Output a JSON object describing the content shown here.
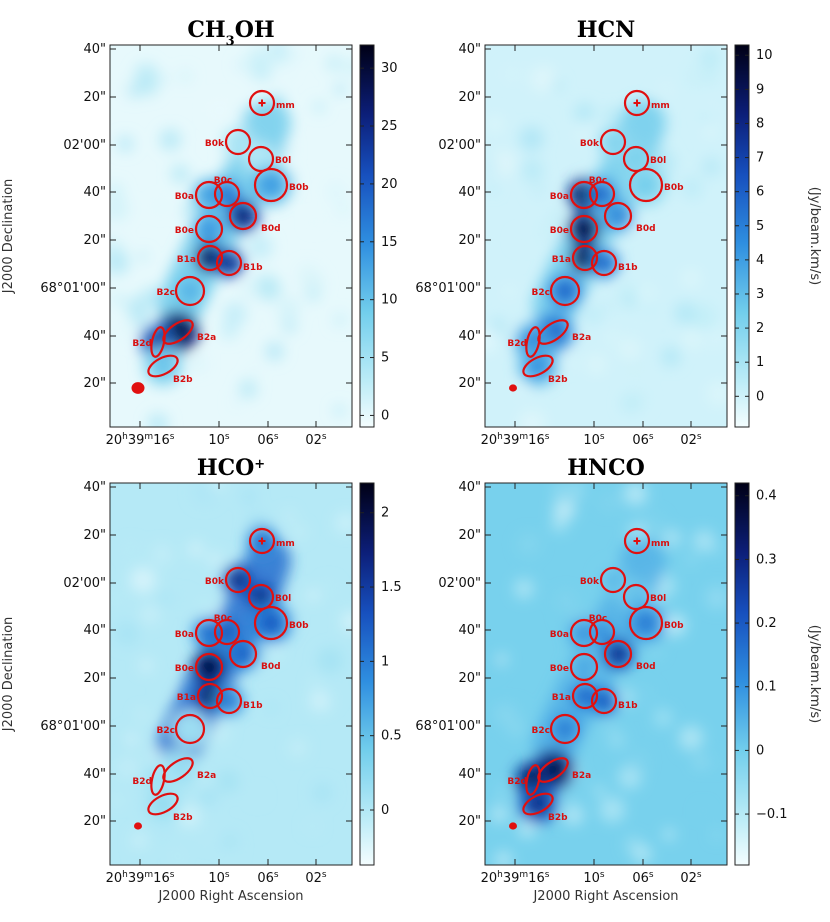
{
  "figure": {
    "xlabel": "J2000 Right Ascension",
    "ylabel": "J2000 Declination",
    "colorbar_unit": "(Jy/beam.km/s)",
    "xticks": [
      "20h39m16s",
      "10s",
      "06s",
      "02s"
    ],
    "yticks_left": [
      "40\"",
      "20\"",
      "02'00\"",
      "40\"",
      "20\"",
      "68°01'00\"",
      "40\"",
      "20\""
    ],
    "yticks_right": [
      "40\"",
      "20\"",
      "02'00\"",
      "40\"",
      "20\"",
      "68°01'00\"",
      "40\"",
      "20\""
    ],
    "colors": {
      "region": "#e01010",
      "cmap_low": "#f4fdfe",
      "cmap_mid": "#2f8fe0",
      "cmap_high": "#000022"
    }
  },
  "chart_data": [
    {
      "type": "heatmap",
      "title": "CH3OH",
      "title_main": "CH",
      "title_sub": "3",
      "title_tail": "OH",
      "colorbar": {
        "min": -1,
        "max": 32,
        "ticks": [
          0,
          5,
          10,
          15,
          20,
          25,
          30
        ]
      },
      "intensity": {
        "B0k": 5,
        "B0l": 4,
        "B0b": 14,
        "B0a": 14,
        "B0c": 18,
        "B0d": 28,
        "B0e": 15,
        "B1a": 32,
        "B1b": 26,
        "B2c": 12,
        "B2a": 34,
        "B2d": 24,
        "B2b": 10,
        "ridge": 9
      }
    },
    {
      "type": "heatmap",
      "title": "HCN",
      "title_main": "HCN",
      "colorbar": {
        "min": -0.9,
        "max": 10.3,
        "ticks": [
          0,
          1,
          2,
          3,
          4,
          5,
          6,
          7,
          8,
          9,
          10
        ]
      },
      "intensity": {
        "B0k": 2.2,
        "B0l": 2.5,
        "B0b": 2.5,
        "B0a": 10,
        "B0c": 6,
        "B0d": 5,
        "B0e": 10.5,
        "B1a": 11,
        "B1b": 6,
        "B2c": 6,
        "B2a": 6,
        "B2d": 5,
        "B2b": 4.5,
        "ridge": 2.5
      }
    },
    {
      "type": "heatmap",
      "title": "HCO+",
      "title_main": "HCO",
      "title_sup": "+",
      "colorbar": {
        "min": -0.37,
        "max": 2.2,
        "ticks": [
          0,
          0.5,
          1,
          1.5,
          2
        ]
      },
      "intensity": {
        "mm": 1.2,
        "B0k": 1.8,
        "B0l": 1.8,
        "B0b": 1.3,
        "B0a": 1.2,
        "B0c": 1.4,
        "B0d": 1.3,
        "B0e": 2.4,
        "B1a": 2.1,
        "B1b": 1.1,
        "B2c": 0.15,
        "B2a": 0.2,
        "B2d": 0.15,
        "B2b": 0.2,
        "ridge": 1.1
      }
    },
    {
      "type": "heatmap",
      "title": "HNCO",
      "title_main": "HNCO",
      "colorbar": {
        "min": -0.18,
        "max": 0.42,
        "ticks": [
          -0.1,
          0,
          0.1,
          0.2,
          0.3,
          0.4
        ]
      },
      "intensity": {
        "B0k": 0.05,
        "B0l": 0.04,
        "B0b": 0.15,
        "B0a": 0.12,
        "B0c": 0.12,
        "B0d": 0.3,
        "B0e": 0.08,
        "B1a": 0.2,
        "B1b": 0.22,
        "B2c": 0.15,
        "B2a": 0.42,
        "B2d": 0.4,
        "B2b": 0.3,
        "ridge": 0.05
      }
    }
  ],
  "regions": [
    "mm",
    "B0k",
    "B0l",
    "B0b",
    "B0a",
    "B0c",
    "B0d",
    "B0e",
    "B1a",
    "B1b",
    "B2c",
    "B2a",
    "B2d",
    "B2b"
  ]
}
